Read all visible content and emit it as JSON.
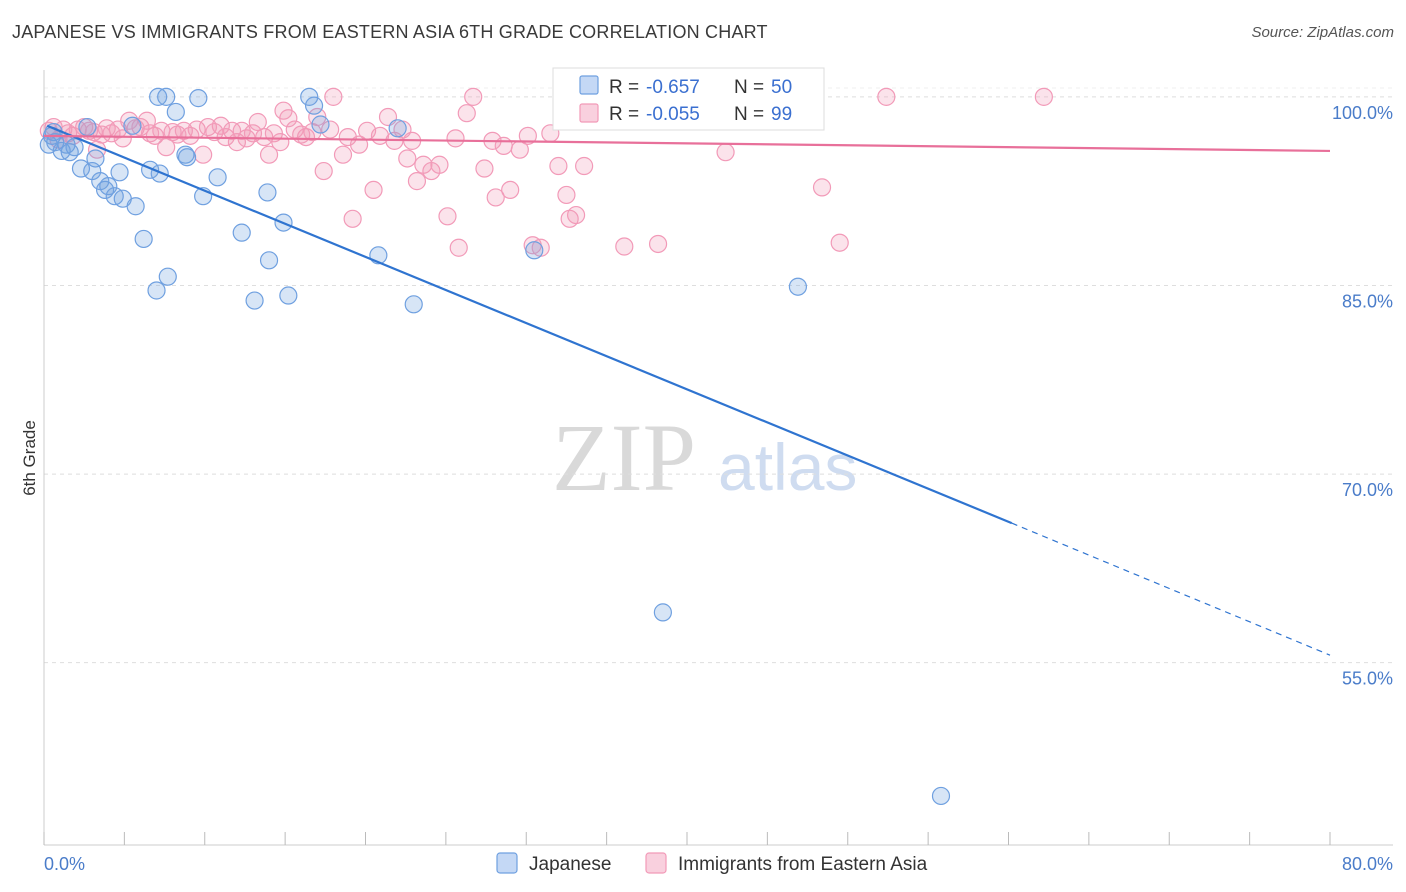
{
  "title": "JAPANESE VS IMMIGRANTS FROM EASTERN ASIA 6TH GRADE CORRELATION CHART",
  "source": "Source: ZipAtlas.com",
  "watermark": {
    "zip": "ZIP",
    "atlas": "atlas"
  },
  "colors": {
    "japanese": "#6fa0e0",
    "japanese_line": "#2f74d0",
    "eastern_asia": "#f29ab8",
    "eastern_asia_line": "#e8709a",
    "value_text": "#3a6fd0"
  },
  "legend_top": [
    {
      "r_label": "R = ",
      "r_value": "-0.657",
      "n_label": "N = ",
      "n_value": "50",
      "series": "japanese"
    },
    {
      "r_label": "R = ",
      "r_value": "-0.055",
      "n_label": "N = ",
      "n_value": "99",
      "series": "eastern_asia"
    }
  ],
  "legend_bottom": [
    {
      "label": "Japanese",
      "series": "japanese"
    },
    {
      "label": "Immigrants from Eastern Asia",
      "series": "eastern_asia"
    }
  ],
  "chart_data": {
    "type": "scatter",
    "title": "JAPANESE VS IMMIGRANTS FROM EASTERN ASIA 6TH GRADE CORRELATION CHART",
    "xlabel": "",
    "ylabel": "6th Grade",
    "xlim": [
      0,
      80
    ],
    "ylim": [
      40.5,
      101.5
    ],
    "x_tick_labels": [
      "0.0%",
      "80.0%"
    ],
    "y_ticks": [
      100,
      85,
      70,
      55
    ],
    "y_tick_labels": [
      "100.0%",
      "85.0%",
      "70.0%",
      "55.0%"
    ],
    "grid": true,
    "legend_placement": "top-center",
    "series": [
      {
        "name": "Japanese",
        "color": "#6fa0e0",
        "r": -0.657,
        "n": 50,
        "trend": {
          "x0": 0.2,
          "y0": 97.7,
          "x1": 60.2,
          "y1": 66.1,
          "dashed_to_x": 80,
          "dashed_to_y": 55.6
        },
        "points": [
          [
            0.3,
            96.2
          ],
          [
            0.5,
            96.9
          ],
          [
            0.7,
            96.4
          ],
          [
            1.1,
            95.7
          ],
          [
            1.4,
            96.2
          ],
          [
            1.6,
            95.6
          ],
          [
            1.9,
            96.0
          ],
          [
            2.3,
            94.3
          ],
          [
            2.7,
            97.6
          ],
          [
            3.0,
            94.1
          ],
          [
            3.2,
            95.1
          ],
          [
            3.5,
            93.3
          ],
          [
            3.8,
            92.6
          ],
          [
            4.0,
            92.9
          ],
          [
            4.4,
            92.1
          ],
          [
            4.7,
            94.0
          ],
          [
            4.9,
            91.9
          ],
          [
            5.5,
            97.7
          ],
          [
            5.7,
            91.3
          ],
          [
            6.2,
            88.7
          ],
          [
            6.6,
            94.2
          ],
          [
            7.0,
            84.6
          ],
          [
            7.2,
            93.9
          ],
          [
            7.1,
            100.0
          ],
          [
            7.6,
            100.0
          ],
          [
            7.7,
            85.7
          ],
          [
            8.2,
            98.8
          ],
          [
            8.8,
            95.4
          ],
          [
            8.9,
            95.2
          ],
          [
            9.6,
            99.9
          ],
          [
            9.9,
            92.1
          ],
          [
            10.8,
            93.6
          ],
          [
            12.3,
            89.2
          ],
          [
            13.1,
            83.8
          ],
          [
            13.9,
            92.4
          ],
          [
            14.0,
            87.0
          ],
          [
            14.9,
            90.0
          ],
          [
            15.2,
            84.2
          ],
          [
            16.5,
            100.0
          ],
          [
            16.8,
            99.3
          ],
          [
            17.2,
            97.8
          ],
          [
            20.8,
            87.4
          ],
          [
            22.0,
            97.5
          ],
          [
            23.0,
            83.5
          ],
          [
            30.5,
            87.8
          ],
          [
            39.0,
            100.0
          ],
          [
            38.5,
            59.0
          ],
          [
            46.9,
            84.9
          ],
          [
            55.8,
            44.4
          ],
          [
            0.6,
            97.2
          ]
        ]
      },
      {
        "name": "Immigrants from Eastern Asia",
        "color": "#f29ab8",
        "r": -0.055,
        "n": 99,
        "trend": {
          "x0": 0,
          "y0": 96.9,
          "x1": 80,
          "y1": 95.7
        },
        "points": [
          [
            0.3,
            97.3
          ],
          [
            0.6,
            97.6
          ],
          [
            0.9,
            96.6
          ],
          [
            1.2,
            97.4
          ],
          [
            1.5,
            97.1
          ],
          [
            1.8,
            96.9
          ],
          [
            2.1,
            97.4
          ],
          [
            2.5,
            97.6
          ],
          [
            2.8,
            97.3
          ],
          [
            3.1,
            97.2
          ],
          [
            3.3,
            95.8
          ],
          [
            3.6,
            97.0
          ],
          [
            3.9,
            97.5
          ],
          [
            4.2,
            97.1
          ],
          [
            4.6,
            97.4
          ],
          [
            4.9,
            96.7
          ],
          [
            5.3,
            98.1
          ],
          [
            5.7,
            97.5
          ],
          [
            6.0,
            97.6
          ],
          [
            6.4,
            98.1
          ],
          [
            6.6,
            97.1
          ],
          [
            6.9,
            96.9
          ],
          [
            7.3,
            97.3
          ],
          [
            7.6,
            96.0
          ],
          [
            8.0,
            97.2
          ],
          [
            8.3,
            97.0
          ],
          [
            8.7,
            97.3
          ],
          [
            9.1,
            96.9
          ],
          [
            9.5,
            97.4
          ],
          [
            9.9,
            95.4
          ],
          [
            10.2,
            97.6
          ],
          [
            10.6,
            97.2
          ],
          [
            11.0,
            97.7
          ],
          [
            11.3,
            96.8
          ],
          [
            11.7,
            97.3
          ],
          [
            12.0,
            96.4
          ],
          [
            12.3,
            97.3
          ],
          [
            12.6,
            96.7
          ],
          [
            13.0,
            97.1
          ],
          [
            13.3,
            98.0
          ],
          [
            13.7,
            96.8
          ],
          [
            14.0,
            95.4
          ],
          [
            14.3,
            97.1
          ],
          [
            14.7,
            96.4
          ],
          [
            14.9,
            98.9
          ],
          [
            15.2,
            98.3
          ],
          [
            15.6,
            97.4
          ],
          [
            16.0,
            97.0
          ],
          [
            16.3,
            96.8
          ],
          [
            16.7,
            97.2
          ],
          [
            17.0,
            98.4
          ],
          [
            17.4,
            94.1
          ],
          [
            17.8,
            97.4
          ],
          [
            18.0,
            100.0
          ],
          [
            18.6,
            95.4
          ],
          [
            18.9,
            96.8
          ],
          [
            19.2,
            90.3
          ],
          [
            19.6,
            96.2
          ],
          [
            20.1,
            97.3
          ],
          [
            20.5,
            92.6
          ],
          [
            20.9,
            96.9
          ],
          [
            21.4,
            98.4
          ],
          [
            21.8,
            96.5
          ],
          [
            22.3,
            97.4
          ],
          [
            22.6,
            95.1
          ],
          [
            22.9,
            96.5
          ],
          [
            23.2,
            93.3
          ],
          [
            23.6,
            94.6
          ],
          [
            24.1,
            94.1
          ],
          [
            24.6,
            94.6
          ],
          [
            25.1,
            90.5
          ],
          [
            25.6,
            96.7
          ],
          [
            25.8,
            88.0
          ],
          [
            26.3,
            98.7
          ],
          [
            26.7,
            100.0
          ],
          [
            27.4,
            94.3
          ],
          [
            27.9,
            96.5
          ],
          [
            28.1,
            92.0
          ],
          [
            28.6,
            96.1
          ],
          [
            29.0,
            92.6
          ],
          [
            29.6,
            95.8
          ],
          [
            30.1,
            96.9
          ],
          [
            30.4,
            88.2
          ],
          [
            30.9,
            88.0
          ],
          [
            31.5,
            97.1
          ],
          [
            32.0,
            94.5
          ],
          [
            32.5,
            92.2
          ],
          [
            32.7,
            90.3
          ],
          [
            33.1,
            90.6
          ],
          [
            33.6,
            94.5
          ],
          [
            36.1,
            88.1
          ],
          [
            36.9,
            99.4
          ],
          [
            38.2,
            88.3
          ],
          [
            42.4,
            95.6
          ],
          [
            43.4,
            100.0
          ],
          [
            48.4,
            92.8
          ],
          [
            49.5,
            88.4
          ],
          [
            52.4,
            100.0
          ],
          [
            62.2,
            100.0
          ]
        ]
      }
    ]
  }
}
